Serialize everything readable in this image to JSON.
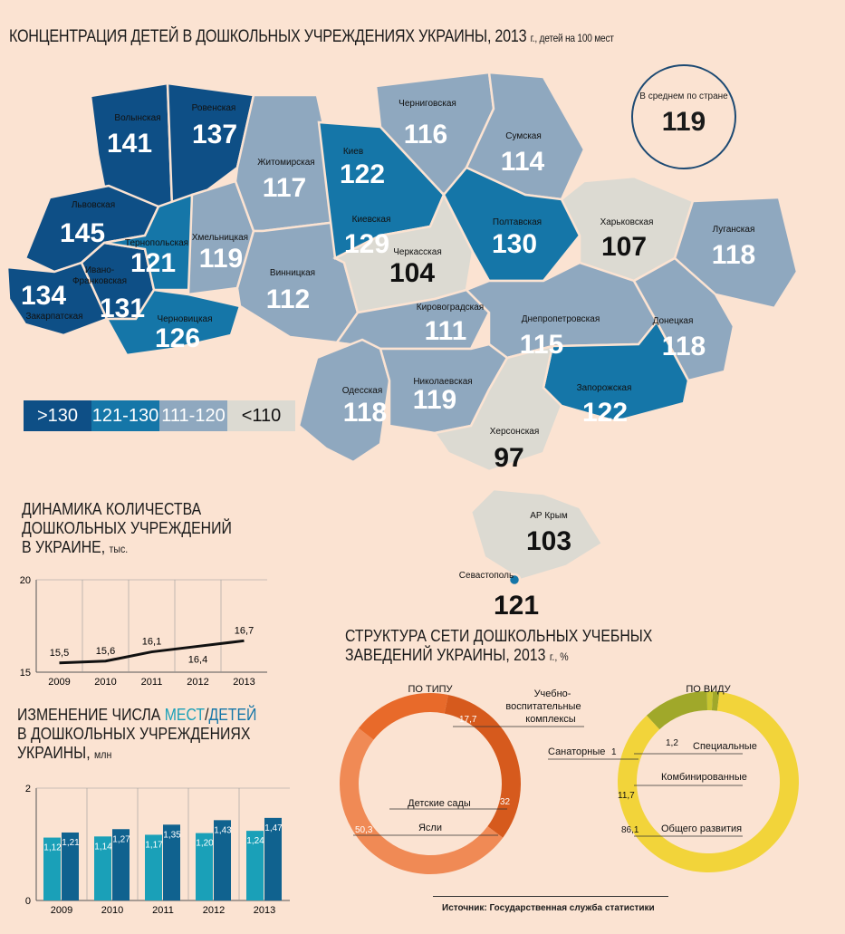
{
  "title": {
    "main": "КОНЦЕНТРАЦИЯ ДЕТЕЙ В ДОШКОЛЬНЫХ УЧРЕЖДЕНИЯХ УКРАИНЫ, 2013",
    "unit": "г., детей на 100 мест"
  },
  "colors": {
    "gt130": "#0e4f86",
    "r121_130": "#1576a8",
    "r111_120": "#8fa8bf",
    "lt110": "#dcdad2",
    "orange_dark": "#d65a1d",
    "orange_mid": "#e86a2a",
    "orange_light": "#f08a55",
    "yellow": "#f2d43a",
    "olive": "#a0a82a"
  },
  "average": {
    "label": "В среднем по стране",
    "value": "119"
  },
  "legend": [
    ">130",
    "121-130",
    "111-120",
    "<110"
  ],
  "regions": [
    {
      "name": "Волынская",
      "value": "141"
    },
    {
      "name": "Ровенская",
      "value": "137"
    },
    {
      "name": "Львовская",
      "value": "145"
    },
    {
      "name": "Закарпатская",
      "value": "134"
    },
    {
      "name": "Ивано-",
      "name2": "Франковская",
      "value": "131"
    },
    {
      "name": "Тернопольская",
      "value": "121"
    },
    {
      "name": "Хмельницкая",
      "value": "119"
    },
    {
      "name": "Черновицкая",
      "value": "126"
    },
    {
      "name": "Житомирская",
      "value": "117"
    },
    {
      "name": "Винницкая",
      "value": "112"
    },
    {
      "name": "Киев",
      "value": "122"
    },
    {
      "name": "Киевская",
      "value": "129"
    },
    {
      "name": "Черниговская",
      "value": "116"
    },
    {
      "name": "Сумская",
      "value": "114"
    },
    {
      "name": "Черкасская",
      "value": "104"
    },
    {
      "name": "Полтавская",
      "value": "130"
    },
    {
      "name": "Харьковская",
      "value": "107"
    },
    {
      "name": "Луганская",
      "value": "118"
    },
    {
      "name": "Кировоградская",
      "value": "111"
    },
    {
      "name": "Днепропетровская",
      "value": "115"
    },
    {
      "name": "Донецкая",
      "value": "118"
    },
    {
      "name": "Одесская",
      "value": "118"
    },
    {
      "name": "Николаевская",
      "value": "119"
    },
    {
      "name": "Запорожская",
      "value": "122"
    },
    {
      "name": "Херсонская",
      "value": "97"
    },
    {
      "name": "АР Крым",
      "value": "103"
    },
    {
      "name": "Севастополь",
      "value": "121"
    }
  ],
  "dynamics": {
    "title1": "ДИНАМИКА КОЛИЧЕСТВА",
    "title2": "ДОШКОЛЬНЫХ УЧРЕЖДЕНИЙ",
    "title3": "В УКРАИНЕ,",
    "unit": "тыс.",
    "y_max_label": "20",
    "y_min_label": "15"
  },
  "changes": {
    "title1_a": "ИЗМЕНЕНИЕ ЧИСЛА ",
    "title1_b": "МЕСТ",
    "title1_c": "/",
    "title1_d": "ДЕТЕЙ",
    "title2": "В ДОШКОЛЬНЫХ УЧРЕЖДЕНИЯХ",
    "title3": "УКРАИНЫ,",
    "unit": "млн",
    "y_max_label": "2",
    "y_min_label": "0"
  },
  "structure": {
    "title1": "СТРУКТУРА СЕТИ ДОШКОЛЬНЫХ УЧЕБНЫХ",
    "title2": "ЗАВЕДЕНИЙ УКРАИНЫ, 2013",
    "unit": "г., %",
    "type_label": "ПО ТИПУ",
    "kind_label": "ПО ВИДУ",
    "type_labels": [
      "Учебно-",
      "воспитательные",
      "комплексы",
      "Детские сады",
      "Ясли"
    ],
    "kind_labels": [
      "Специальные",
      "Санаторные",
      "Комбинированные",
      "Общего развития"
    ]
  },
  "source": "Источник: Государственная служба статистики",
  "chart_data": [
    {
      "type": "line",
      "title": "ДИНАМИКА КОЛИЧЕСТВА ДОШКОЛЬНЫХ УЧРЕЖДЕНИЙ В УКРАИНЕ, тыс.",
      "x": [
        "2009",
        "2010",
        "2011",
        "2012",
        "2013"
      ],
      "values": [
        15.5,
        15.6,
        16.1,
        16.4,
        16.7
      ],
      "value_labels": [
        "15,5",
        "15,6",
        "16,1",
        "16,4",
        "16,7"
      ],
      "ylim": [
        15,
        20
      ]
    },
    {
      "type": "bar",
      "title": "ИЗМЕНЕНИЕ ЧИСЛА МЕСТ/ДЕТЕЙ В ДОШКОЛЬНЫХ УЧРЕЖДЕНИЯХ УКРАИНЫ, млн",
      "categories": [
        "2009",
        "2010",
        "2011",
        "2012",
        "2013"
      ],
      "series": [
        {
          "name": "МЕСТ",
          "values": [
            1.12,
            1.14,
            1.17,
            1.2,
            1.24
          ],
          "labels": [
            "1,12",
            "1,14",
            "1,17",
            "1,20",
            "1,24"
          ],
          "color": "#1aa0b8"
        },
        {
          "name": "ДЕТЕЙ",
          "values": [
            1.21,
            1.27,
            1.35,
            1.43,
            1.47
          ],
          "labels": [
            "1,21",
            "1,27",
            "1,35",
            "1,43",
            "1,47"
          ],
          "color": "#10628f"
        }
      ],
      "ylim": [
        0,
        2
      ]
    },
    {
      "type": "pie",
      "title": "ПО ТИПУ",
      "slices": [
        {
          "label": "Детские сады",
          "value": 32,
          "text": "32",
          "color": "#d65a1d"
        },
        {
          "label": "Ясли",
          "value": 50.3,
          "text": "50,3",
          "color": "#f08a55"
        },
        {
          "label": "Учебно-воспитательные комплексы",
          "value": 17.7,
          "text": "17,7",
          "color": "#e86a2a"
        }
      ]
    },
    {
      "type": "pie",
      "title": "ПО ВИДУ",
      "slices": [
        {
          "label": "Специальные",
          "value": 1.2,
          "text": "1,2",
          "color": "#a0a82a"
        },
        {
          "label": "Общего развития",
          "value": 86.1,
          "text": "86,1",
          "color": "#f2d43a"
        },
        {
          "label": "Комбинированные",
          "value": 11.7,
          "text": "11,7",
          "color": "#a0a82a"
        },
        {
          "label": "Санаторные",
          "value": 1,
          "text": "1",
          "color": "#c8c530"
        }
      ]
    }
  ]
}
